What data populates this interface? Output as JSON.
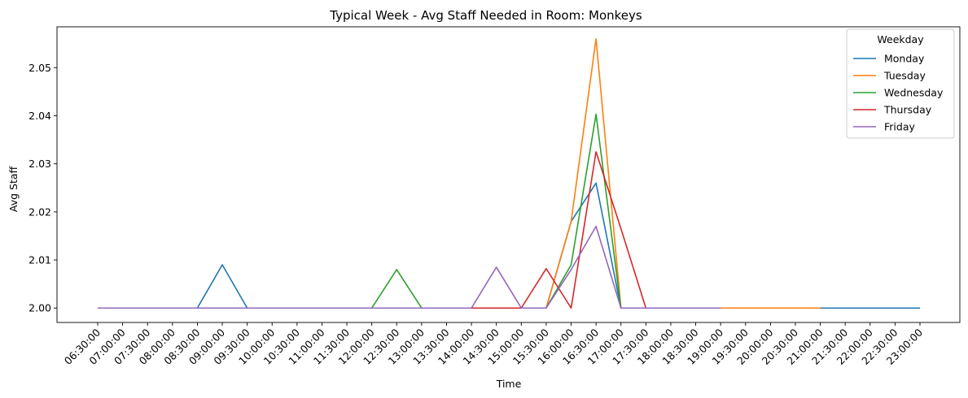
{
  "chart_data": {
    "type": "line",
    "title": "Typical Week - Avg Staff Needed in Room: Monkeys",
    "xlabel": "Time",
    "ylabel": "Avg Staff",
    "categories": [
      "06:30:00",
      "07:00:00",
      "07:30:00",
      "08:00:00",
      "08:30:00",
      "09:00:00",
      "09:30:00",
      "10:00:00",
      "10:30:00",
      "11:00:00",
      "11:30:00",
      "12:00:00",
      "12:30:00",
      "13:00:00",
      "13:30:00",
      "14:00:00",
      "14:30:00",
      "15:00:00",
      "15:30:00",
      "16:00:00",
      "16:30:00",
      "17:00:00",
      "17:30:00",
      "18:00:00",
      "18:30:00",
      "19:00:00",
      "19:30:00",
      "20:00:00",
      "20:30:00",
      "21:00:00",
      "21:30:00",
      "22:00:00",
      "22:30:00",
      "23:00:00"
    ],
    "ylim": [
      1.997,
      2.0585
    ],
    "yticks": [
      2.0,
      2.01,
      2.02,
      2.03,
      2.04,
      2.05
    ],
    "ytick_labels": [
      "2.00",
      "2.01",
      "2.02",
      "2.03",
      "2.04",
      "2.05"
    ],
    "grid": false,
    "legend": {
      "title": "Weekday",
      "placement": "top-right"
    },
    "series": [
      {
        "name": "Monday",
        "color": "#1f77b4",
        "values": [
          2.0,
          2.0,
          2.0,
          2.0,
          2.0,
          2.009,
          2.0,
          2.0,
          2.0,
          2.0,
          2.0,
          2.0,
          2.0,
          2.0,
          2.0,
          2.0,
          2.0,
          2.0,
          2.0,
          2.018,
          2.026,
          2.0,
          2.0,
          2.0,
          2.0,
          2.0,
          2.0,
          2.0,
          2.0,
          2.0,
          2.0,
          2.0,
          2.0,
          2.0
        ]
      },
      {
        "name": "Tuesday",
        "color": "#ff7f0e",
        "values": [
          2.0,
          2.0,
          2.0,
          2.0,
          2.0,
          2.0,
          2.0,
          2.0,
          2.0,
          2.0,
          2.0,
          2.0,
          2.0,
          2.0,
          2.0,
          2.0,
          2.0,
          2.0,
          2.0,
          2.018,
          2.056,
          2.0,
          2.0,
          2.0,
          2.0,
          2.0,
          2.0,
          2.0,
          2.0,
          2.0,
          null,
          null,
          null,
          null
        ]
      },
      {
        "name": "Wednesday",
        "color": "#2ca02c",
        "values": [
          2.0,
          2.0,
          2.0,
          2.0,
          2.0,
          2.0,
          2.0,
          2.0,
          2.0,
          2.0,
          2.0,
          2.0,
          2.008,
          2.0,
          2.0,
          2.0,
          2.0,
          2.0,
          2.0,
          2.009,
          2.0403,
          2.0,
          2.0,
          2.0,
          2.0,
          2.0,
          null,
          null,
          null,
          null,
          null,
          null,
          null,
          null
        ]
      },
      {
        "name": "Thursday",
        "color": "#d62728",
        "values": [
          2.0,
          2.0,
          2.0,
          2.0,
          2.0,
          2.0,
          2.0,
          2.0,
          2.0,
          2.0,
          2.0,
          2.0,
          2.0,
          2.0,
          2.0,
          2.0,
          2.0,
          2.0,
          2.0082,
          2.0,
          2.0325,
          2.0165,
          2.0,
          2.0,
          null,
          null,
          null,
          null,
          null,
          null,
          null,
          null,
          null,
          null
        ]
      },
      {
        "name": "Friday",
        "color": "#9467bd",
        "values": [
          2.0,
          2.0,
          2.0,
          2.0,
          2.0,
          2.0,
          2.0,
          2.0,
          2.0,
          2.0,
          2.0,
          2.0,
          2.0,
          2.0,
          2.0,
          2.0,
          2.0085,
          2.0,
          2.0,
          2.008,
          2.017,
          2.0,
          2.0,
          2.0,
          2.0,
          2.0,
          null,
          null,
          null,
          null,
          null,
          null,
          null,
          null
        ]
      }
    ]
  }
}
